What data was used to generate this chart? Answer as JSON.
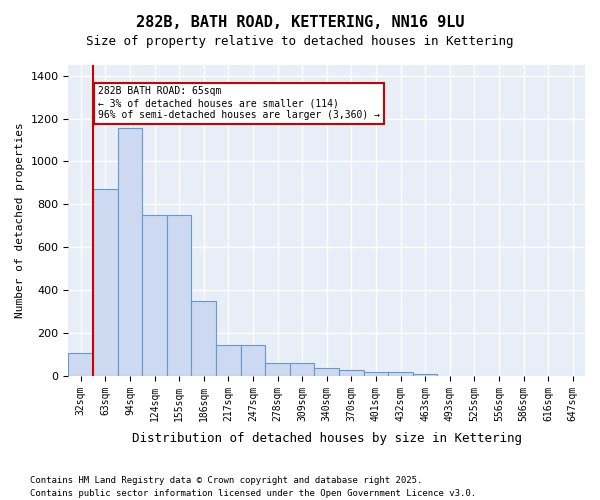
{
  "title_line1": "282B, BATH ROAD, KETTERING, NN16 9LU",
  "title_line2": "Size of property relative to detached houses in Kettering",
  "xlabel": "Distribution of detached houses by size in Kettering",
  "ylabel": "Number of detached properties",
  "categories": [
    "32sqm",
    "63sqm",
    "94sqm",
    "124sqm",
    "155sqm",
    "186sqm",
    "217sqm",
    "247sqm",
    "278sqm",
    "309sqm",
    "340sqm",
    "370sqm",
    "401sqm",
    "432sqm",
    "463sqm",
    "493sqm",
    "525sqm",
    "556sqm",
    "586sqm",
    "616sqm",
    "647sqm"
  ],
  "values": [
    105,
    870,
    1155,
    750,
    750,
    350,
    145,
    145,
    60,
    60,
    35,
    28,
    20,
    20,
    10,
    0,
    0,
    0,
    0,
    0,
    0
  ],
  "bar_color": "#ccd9f0",
  "bar_edge_color": "#6699cc",
  "background_color": "#e8eef8",
  "grid_color": "#ffffff",
  "vline_x": 1,
  "vline_color": "#cc0000",
  "annotation_text": "282B BATH ROAD: 65sqm\n← 3% of detached houses are smaller (114)\n96% of semi-detached houses are larger (3,360) →",
  "annotation_box_color": "#cc0000",
  "footnote1": "Contains HM Land Registry data © Crown copyright and database right 2025.",
  "footnote2": "Contains public sector information licensed under the Open Government Licence v3.0.",
  "ylim": [
    0,
    1450
  ],
  "yticks": [
    0,
    200,
    400,
    600,
    800,
    1000,
    1200,
    1400
  ]
}
